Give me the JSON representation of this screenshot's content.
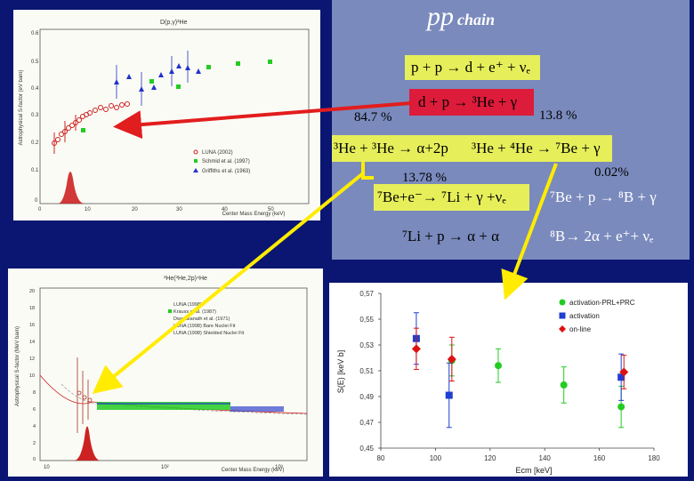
{
  "title": {
    "main": "pp",
    "sub": "chain"
  },
  "reactions": {
    "r1": "p + p → d + e⁺ + νₑ",
    "r2": "d + p → ³He + γ",
    "r3": "³He + ³He → α+2p",
    "r4": "³He + ⁴He → ⁷Be + γ",
    "r5": "⁷Be+e⁻→ ⁷Li + γ +νₑ",
    "r6": "⁷Be + p → ⁸B + γ",
    "r7": "⁷Li + p → α + α",
    "r8": "⁸B→ 2α + e⁺+ νₑ"
  },
  "branches": {
    "b1": "84.7 %",
    "b2": "13.8 %",
    "b3": "13.78 %",
    "b4": "0.02%"
  },
  "plot1": {
    "title": "D(p,γ)³He",
    "ylabel": "Astrophysical S-factor (eV barn)",
    "xlabel": "Center Mass Energy (keV)",
    "yticks": [
      "0.6",
      "0.5",
      "0.4",
      "0.3",
      "0.2",
      "0.1",
      "0"
    ],
    "xticks": [
      "0",
      "10",
      "20",
      "30",
      "40",
      "50"
    ],
    "legend": [
      "LUNA (2002)",
      "Schmid et al. (1997)",
      "Griffiths et al. (1963)"
    ]
  },
  "plot2": {
    "title": "³He(³He,2p)⁴He",
    "ylabel": "Astrophysical S-factor (MeV barn)",
    "xlabel": "Center Mass Energy (keV)",
    "yticks": [
      "20",
      "18",
      "16",
      "14",
      "12",
      "10",
      "8",
      "6",
      "4",
      "2",
      "0"
    ],
    "xticks": [
      "10",
      "10²",
      "10³"
    ],
    "legend": [
      "LUNA (1998)",
      "Krauss et al. (1987)",
      "Dwarakanath et al. (1971)",
      "LUNA (1998) Bare Nuclei Fit",
      "LUNA (1998) Shielded Nuclei Fit"
    ]
  },
  "chart_data": {
    "type": "scatter",
    "xlabel": "Ecm [keV]",
    "ylabel": "S(E) [keV b]",
    "xlim": [
      80,
      180
    ],
    "ylim": [
      0.45,
      0.57
    ],
    "xticks": [
      "80",
      "100",
      "120",
      "140",
      "160",
      "180"
    ],
    "yticks": [
      "0,57",
      "0,55",
      "0,53",
      "0,51",
      "0,49",
      "0,47",
      "0,45"
    ],
    "legend_position": "top-right",
    "series": [
      {
        "name": "activation-PRL+PRC",
        "color": "#22cc22",
        "marker": "circle",
        "points": [
          {
            "x": 106,
            "y": 0.518,
            "err": 0.012
          },
          {
            "x": 123,
            "y": 0.514,
            "err": 0.013
          },
          {
            "x": 147,
            "y": 0.499,
            "err": 0.014
          },
          {
            "x": 168,
            "y": 0.482,
            "err": 0.016
          }
        ]
      },
      {
        "name": "activation",
        "color": "#1f3fd0",
        "marker": "square",
        "points": [
          {
            "x": 93,
            "y": 0.535,
            "err": 0.02
          },
          {
            "x": 105,
            "y": 0.491,
            "err": 0.025
          },
          {
            "x": 168,
            "y": 0.505,
            "err": 0.018
          }
        ]
      },
      {
        "name": "on-line",
        "color": "#dd1111",
        "marker": "diamond",
        "points": [
          {
            "x": 93,
            "y": 0.527,
            "err": 0.016
          },
          {
            "x": 106,
            "y": 0.519,
            "err": 0.017
          },
          {
            "x": 169,
            "y": 0.509,
            "err": 0.013
          }
        ]
      }
    ]
  }
}
